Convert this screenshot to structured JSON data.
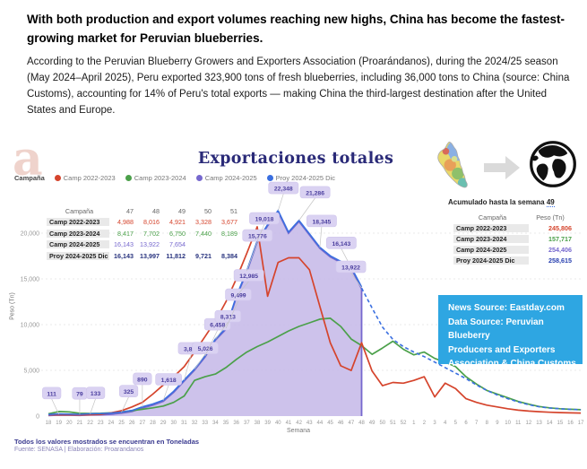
{
  "header": {
    "title": "With both production and export volumes reaching new highs, China has become the fastest-growing market for Peruvian blueberries.",
    "paragraph": "According to the Peruvian Blueberry Growers and Exporters Association (Proarándanos), during the 2024/25 season (May 2024–April 2025), Peru exported 323,900 tons of fresh blueberries, including 36,000 tons to China (source: China Customs), accounting for 14% of Peru's total exports — making China the third-largest destination after the United States and Europe."
  },
  "chart": {
    "logo_letter": "a",
    "title": "Exportaciones totales",
    "legend": {
      "label": "Campaña",
      "items": [
        {
          "name": "Camp 2022-2023",
          "color": "#D5442C"
        },
        {
          "name": "Camp 2023-2024",
          "color": "#4BA04A"
        },
        {
          "name": "Camp 2024-2025",
          "color": "#7668CE"
        },
        {
          "name": "Proy 2024-2025 Dic",
          "color": "#3A6FE0"
        }
      ]
    },
    "mini_table": {
      "header": [
        "Campaña",
        "47",
        "48",
        "49",
        "50",
        "51"
      ],
      "rows": [
        {
          "label": "Camp 2022-2023",
          "color": "#D5442C",
          "bold": false,
          "values": [
            "4,988",
            "8,016",
            "4,921",
            "3,328",
            "3,677"
          ]
        },
        {
          "label": "Camp 2023-2024",
          "color": "#4BA04A",
          "bold": false,
          "values": [
            "8,417",
            "7,702",
            "6,750",
            "7,440",
            "8,189"
          ]
        },
        {
          "label": "Camp 2024-2025",
          "color": "#7668CE",
          "bold": false,
          "values": [
            "16,143",
            "13,922",
            "7,654",
            "",
            ""
          ]
        },
        {
          "label": "Proy 2024-2025 Dic",
          "color": "#28337E",
          "bold": true,
          "values": [
            "16,143",
            "13,997",
            "11,812",
            "9,721",
            "8,384"
          ]
        }
      ]
    },
    "acumulado": {
      "title_prefix": "Acumulado hasta la semana ",
      "week": "49",
      "header": [
        "Campaña",
        "Peso (Tn)"
      ],
      "rows": [
        {
          "label": "Camp 2022-2023",
          "value": "245,806",
          "color": "#D5442C"
        },
        {
          "label": "Camp 2023-2024",
          "value": "157,717",
          "color": "#4BA04A"
        },
        {
          "label": "Camp 2024-2025",
          "value": "254,406",
          "color": "#7668CE"
        },
        {
          "label": "Proy 2024-2025 Dic",
          "value": "258,615",
          "color": "#2840B0"
        }
      ]
    },
    "source_box": {
      "bg": "#2EA6E2",
      "lines": [
        "News Source: Eastday.com",
        "Data Source: Peruvian Blueberry",
        "Producers and Exporters",
        "Association & China Customs"
      ]
    },
    "footnote_bold": "Todos los valores mostrados se encuentran en Toneladas",
    "footnote_source": "Fuente: SENASA | Elaboración: Proarandanos"
  },
  "chart_data": {
    "type": "line",
    "title": "Exportaciones totales",
    "xlabel": "Semana",
    "ylabel": "Peso (Tn)",
    "x_weeks": [
      18,
      19,
      20,
      21,
      22,
      23,
      24,
      25,
      26,
      27,
      28,
      29,
      30,
      31,
      32,
      33,
      34,
      35,
      36,
      37,
      38,
      39,
      40,
      41,
      42,
      43,
      44,
      45,
      46,
      47,
      48,
      49,
      50,
      51,
      52,
      1,
      2,
      3,
      4,
      5,
      6,
      7,
      8,
      9,
      10,
      11,
      12,
      13,
      14,
      15,
      16,
      17
    ],
    "ylim": [
      0,
      22500
    ],
    "yticks": [
      0,
      5000,
      10000,
      15000,
      20000
    ],
    "ytick_labels": [
      "0",
      "5,000",
      "10,000",
      "15,000",
      "20,000"
    ],
    "grid": true,
    "legend_position": "top-left",
    "series": [
      {
        "name": "Camp 2022-2023",
        "color": "#D5442C",
        "style": "line",
        "values": [
          150,
          140,
          130,
          140,
          150,
          180,
          350,
          600,
          1000,
          1500,
          2400,
          3400,
          4300,
          5400,
          7000,
          8700,
          10400,
          12500,
          15000,
          17800,
          20700,
          13100,
          16800,
          17300,
          17300,
          16000,
          12000,
          8000,
          5500,
          4988,
          8016,
          4921,
          3328,
          3677,
          3600,
          3900,
          4300,
          2100,
          3600,
          3000,
          1900,
          1500,
          1200,
          1000,
          800,
          650,
          550,
          480,
          420,
          380,
          350,
          330
        ]
      },
      {
        "name": "Camp 2023-2024",
        "color": "#4BA04A",
        "style": "line",
        "values": [
          250,
          500,
          450,
          300,
          280,
          300,
          350,
          450,
          600,
          750,
          900,
          1100,
          1500,
          2200,
          3900,
          4300,
          4600,
          5300,
          6200,
          7000,
          7600,
          8100,
          8700,
          9300,
          9800,
          10200,
          10600,
          10700,
          9800,
          8417,
          7702,
          6750,
          7440,
          8189,
          7300,
          6700,
          7000,
          6300,
          5900,
          5400,
          4300,
          3500,
          2800,
          2400,
          2000,
          1600,
          1300,
          1050,
          900,
          800,
          750,
          700
        ]
      },
      {
        "name": "Camp 2024-2025",
        "color": "#7668CE",
        "style": "area",
        "fill": "#C6B9E8",
        "values": [
          60,
          111,
          95,
          79,
          133,
          150,
          200,
          325,
          500,
          890,
          1200,
          1618,
          2600,
          3829,
          5026,
          6458,
          8313,
          9499,
          12985,
          15776,
          19018,
          20800,
          22348,
          20000,
          21286,
          19800,
          18345,
          17400,
          16800,
          16143,
          13922
        ]
      },
      {
        "name": "Proy 2024-2025 Dic",
        "color": "#3A6FE0",
        "style": "line",
        "dashed_from_index": 30,
        "values": [
          60,
          111,
          95,
          79,
          133,
          150,
          200,
          325,
          500,
          890,
          1200,
          1618,
          2600,
          3829,
          5026,
          6458,
          8313,
          9499,
          12985,
          15776,
          19018,
          20800,
          22348,
          20000,
          21286,
          19800,
          18345,
          17400,
          16800,
          16143,
          13997,
          11812,
          9721,
          8384,
          7600,
          7000,
          6500,
          5900,
          5300,
          4700,
          4100,
          3400,
          2800,
          2300,
          1900,
          1550,
          1250,
          1020,
          880,
          800,
          740,
          700
        ]
      }
    ],
    "point_labels": [
      {
        "i": 1,
        "t": "111",
        "dy": 18,
        "ox": -8
      },
      {
        "i": 3,
        "t": "79",
        "dy": 18,
        "ox": 0
      },
      {
        "i": 4,
        "t": "133",
        "dy": 18,
        "ox": 6
      },
      {
        "i": 7,
        "t": "325",
        "dy": 18,
        "ox": 8
      },
      {
        "i": 9,
        "t": "890",
        "dy": 26,
        "ox": 0
      },
      {
        "i": 11,
        "t": "1,618",
        "dy": 18,
        "ox": 6
      },
      {
        "i": 13,
        "t": "3,829",
        "dy": 30,
        "ox": 8
      },
      {
        "i": 14,
        "t": "5,026",
        "dy": 18,
        "ox": 12
      },
      {
        "i": 15,
        "t": "6,458",
        "dy": 30,
        "ox": 14
      },
      {
        "i": 16,
        "t": "8,313",
        "dy": 20,
        "ox": 14
      },
      {
        "i": 17,
        "t": "9,499",
        "dy": 32,
        "ox": 14
      },
      {
        "i": 18,
        "t": "12,985",
        "dy": 18,
        "ox": 14
      },
      {
        "i": 19,
        "t": "15,776",
        "dy": 34,
        "ox": 12
      },
      {
        "i": 20,
        "t": "19,018",
        "dy": 20,
        "ox": 8
      },
      {
        "i": 22,
        "t": "22,348",
        "dy": 20,
        "ox": 6
      },
      {
        "i": 24,
        "t": "21,286",
        "dy": 26,
        "ox": 18
      },
      {
        "i": 26,
        "t": "18,345",
        "dy": 24,
        "ox": 2
      },
      {
        "i": 29,
        "t": "16,143",
        "dy": 22,
        "ox": -11
      },
      {
        "i": 30,
        "t": "13,922",
        "dy": 18,
        "ox": -12
      }
    ],
    "badge_bg": "#DAD2F2",
    "badge_text_color": "#4A3E9E"
  }
}
